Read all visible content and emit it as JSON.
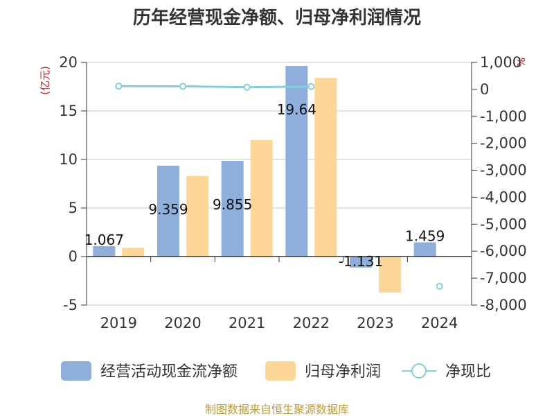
{
  "chart_data": {
    "type": "bar",
    "title": "历年经营现金净额、归母净利润情况",
    "categories": [
      "2019",
      "2020",
      "2021",
      "2022",
      "2023",
      "2024"
    ],
    "left_axis": {
      "unit": "(亿元)",
      "ylim": [
        -5,
        20
      ],
      "ticks": [
        "20",
        "15",
        "10",
        "5",
        "0",
        "-5"
      ]
    },
    "right_axis": {
      "unit": "%",
      "ylim": [
        -8000,
        1000
      ],
      "ticks": [
        "1,000",
        "0",
        "-1,000",
        "-2,000",
        "-3,000",
        "-4,000",
        "-5,000",
        "-6,000",
        "-7,000",
        "-8,000"
      ]
    },
    "series": [
      {
        "name": "经营活动现金流净额",
        "type": "bar",
        "axis": "left",
        "color": "#8eaedb",
        "values": [
          1.067,
          9.359,
          9.855,
          19.64,
          -1.131,
          1.459
        ],
        "labels": [
          "1.067",
          "9.359",
          "9.855",
          "19.64",
          "-1.131",
          "1.459"
        ]
      },
      {
        "name": "归母净利润",
        "type": "bar",
        "axis": "left",
        "color": "#fdd797",
        "values": [
          0.9,
          8.3,
          12.0,
          18.4,
          -3.7,
          0.0
        ]
      },
      {
        "name": "净现比",
        "type": "line",
        "axis": "right",
        "color": "#82d0d9",
        "values": [
          118,
          113,
          82,
          107,
          null,
          -7300
        ]
      }
    ],
    "source": "制图数据来自恒生聚源数据库"
  }
}
